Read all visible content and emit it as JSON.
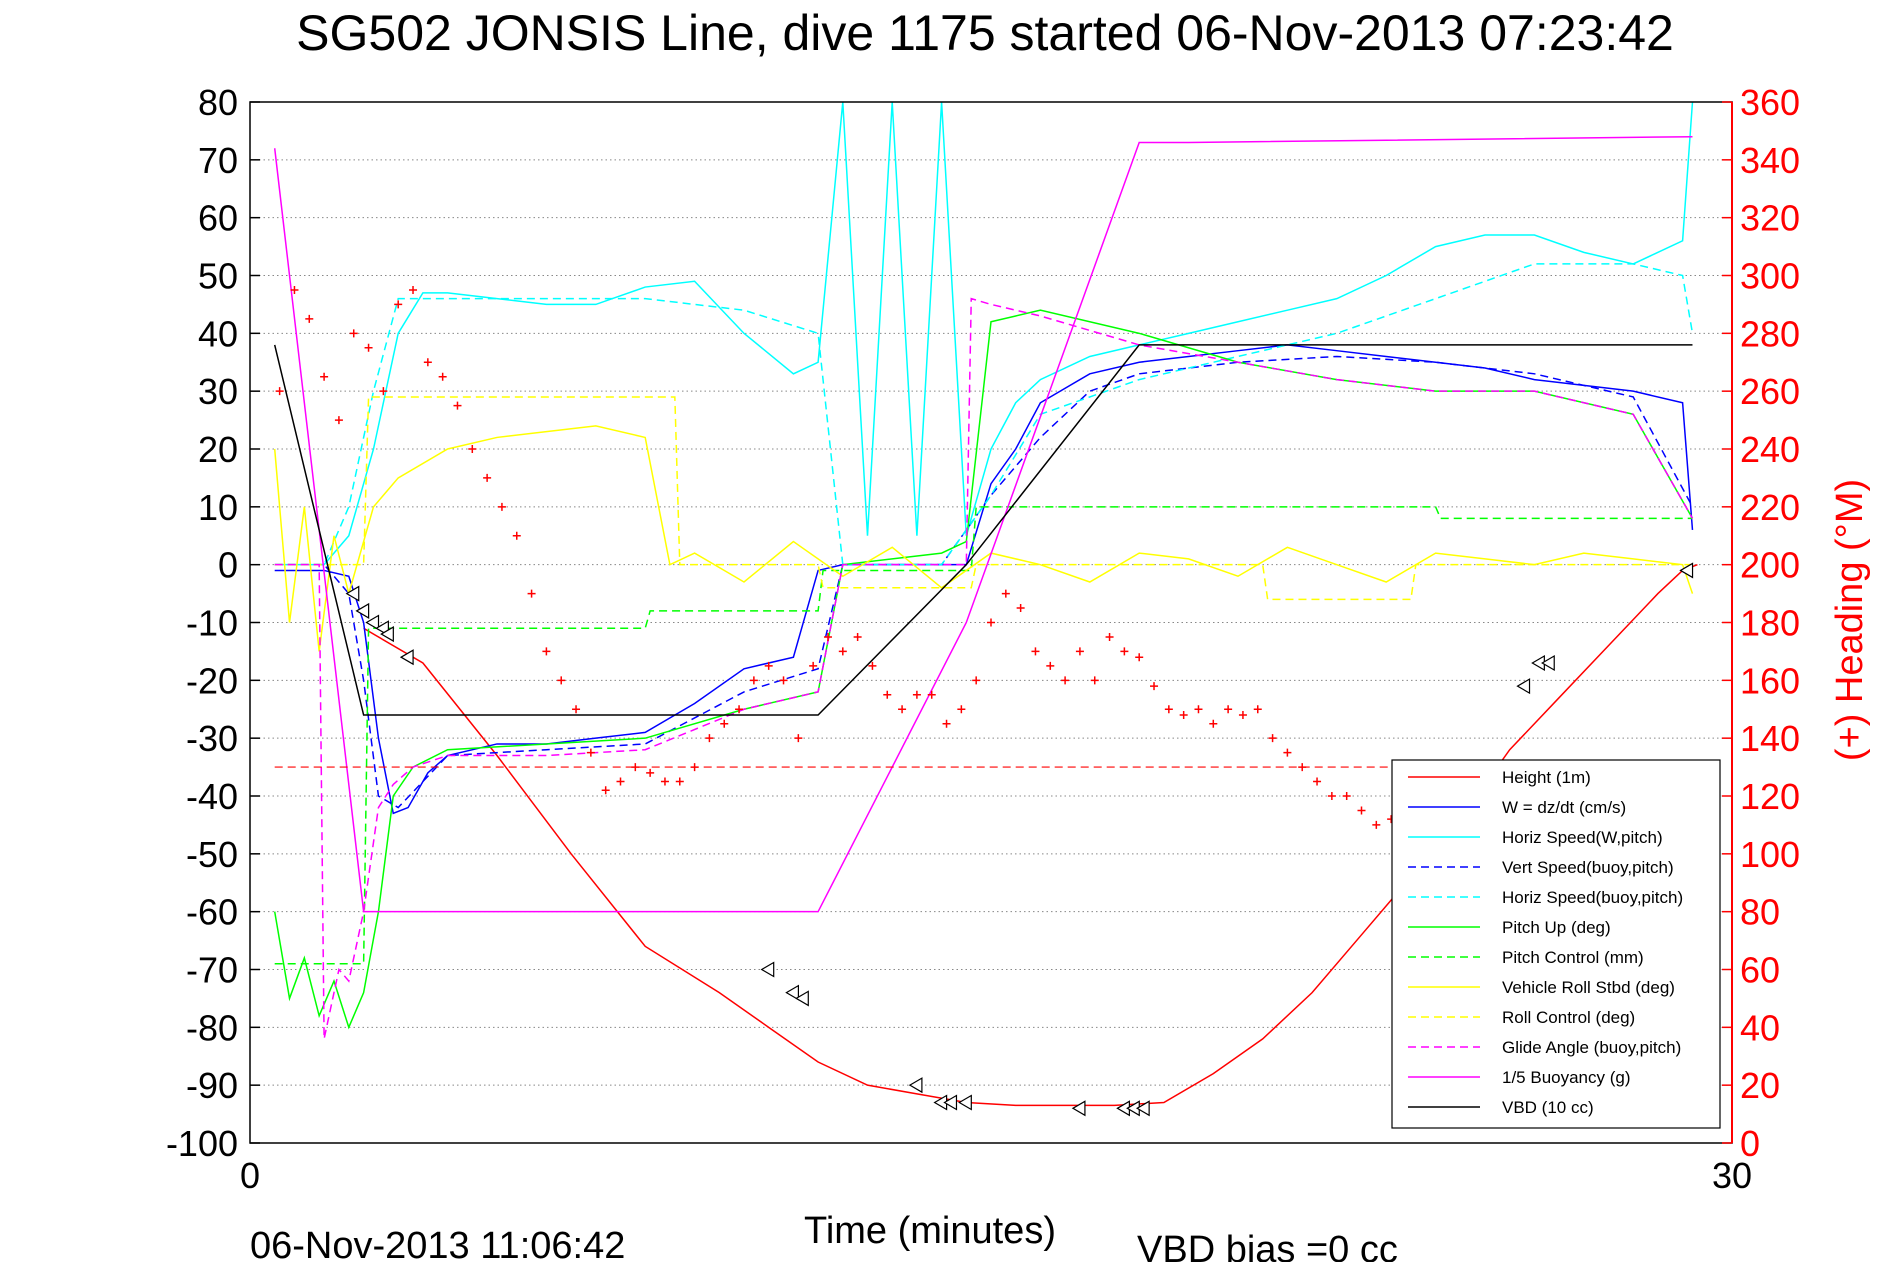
{
  "title": "SG502 JONSIS Line, dive 1175 started 06-Nov-2013 07:23:42",
  "footer": {
    "timestamp": "06-Nov-2013 11:06:42",
    "vbd_bias": "VBD bias =0 cc"
  },
  "colors": {
    "red": "#ff0000",
    "blue": "#0000ff",
    "cyan": "#00ffff",
    "green": "#00ff00",
    "yellow": "#ffff00",
    "magenta": "#ff00ff",
    "black": "#000000"
  },
  "chart_data": {
    "type": "line",
    "title": "SG502 JONSIS Line, dive 1175 started 06-Nov-2013 07:23:42",
    "xlabel": "Time (minutes)",
    "ylabel_right": "(+) Heading (°M)",
    "xlim": [
      0,
      30
    ],
    "ylim": [
      -100,
      80
    ],
    "ylim_right": [
      0,
      360
    ],
    "x_ticks": [
      "0",
      "30"
    ],
    "y_ticks": [
      "80",
      "70",
      "60",
      "50",
      "40",
      "30",
      "20",
      "10",
      "0",
      "-10",
      "-20",
      "-30",
      "-40",
      "-50",
      "-60",
      "-70",
      "-80",
      "-90",
      "-100"
    ],
    "y_right_ticks": [
      "360",
      "340",
      "320",
      "300",
      "280",
      "260",
      "240",
      "220",
      "200",
      "180",
      "160",
      "140",
      "120",
      "100",
      "80",
      "60",
      "40",
      "20",
      "0"
    ],
    "grid": "horizontal dotted",
    "legend_position": "lower-right",
    "legend": [
      {
        "label": "Height (1m)",
        "color": "#ff0000",
        "style": "solid"
      },
      {
        "label": "W = dz/dt (cm/s)",
        "color": "#0000ff",
        "style": "solid"
      },
      {
        "label": "Horiz Speed(W,pitch)",
        "color": "#00ffff",
        "style": "solid"
      },
      {
        "label": "Vert Speed(buoy,pitch)",
        "color": "#0000ff",
        "style": "dashed"
      },
      {
        "label": "Horiz Speed(buoy,pitch)",
        "color": "#00ffff",
        "style": "dashed"
      },
      {
        "label": "Pitch Up (deg)",
        "color": "#00ff00",
        "style": "solid"
      },
      {
        "label": "Pitch Control (mm)",
        "color": "#00ff00",
        "style": "dashed"
      },
      {
        "label": "Vehicle Roll Stbd (deg)",
        "color": "#ffff00",
        "style": "solid"
      },
      {
        "label": "Roll Control (deg)",
        "color": "#ffff00",
        "style": "dashed"
      },
      {
        "label": "Glide Angle (buoy,pitch)",
        "color": "#ff00ff",
        "style": "dashed"
      },
      {
        "label": "1/5 Buoyancy (g)",
        "color": "#ff00ff",
        "style": "solid"
      },
      {
        "label": "VBD (10 cc)",
        "color": "#000000",
        "style": "solid"
      }
    ],
    "series": [
      {
        "name": "Height (1m)",
        "color": "#ff0000",
        "style": "solid",
        "axis": "left",
        "x": [
          2.3,
          3.5,
          5,
          6.5,
          8,
          9.5,
          10.5,
          11.5,
          12.5,
          13.5,
          14.5,
          15.5,
          16.5,
          17.5,
          18.5,
          19.5,
          20.5,
          21.5,
          22.5,
          23.5,
          24.5,
          25.5,
          26.5,
          27.5,
          28.5,
          29,
          29.3
        ],
        "y": [
          -11,
          -17,
          -33,
          -50,
          -66,
          -74,
          -80,
          -86,
          -90,
          -91.5,
          -93,
          -93.5,
          -93.5,
          -93.5,
          -93,
          -88,
          -82,
          -74,
          -64,
          -54,
          -44,
          -32,
          -23,
          -14,
          -5,
          -1,
          0
        ]
      },
      {
        "name": "W = dz/dt (cm/s)",
        "color": "#0000ff",
        "style": "solid",
        "axis": "left",
        "x": [
          0.5,
          1.5,
          2.0,
          2.3,
          2.6,
          2.9,
          3.2,
          3.6,
          4,
          5,
          6,
          7,
          8,
          9,
          10,
          11,
          11.5,
          12,
          13,
          14,
          14.5,
          15,
          15.5,
          16,
          17,
          18,
          19,
          20,
          21,
          22,
          23,
          24,
          25,
          26,
          27,
          28,
          29,
          29.2
        ],
        "y": [
          -1,
          -1,
          -2,
          -10,
          -30,
          -43,
          -42,
          -36,
          -33,
          -31,
          -31,
          -30,
          -29,
          -24,
          -18,
          -16,
          -1,
          0,
          0,
          0,
          0,
          14,
          20,
          28,
          33,
          35,
          36,
          37,
          38,
          37,
          36,
          35,
          34,
          32,
          31,
          30,
          28,
          6
        ]
      },
      {
        "name": "Horiz Speed(W,pitch)",
        "color": "#00ffff",
        "style": "solid",
        "axis": "left",
        "x": [
          0.5,
          1.5,
          2.0,
          2.5,
          3,
          3.5,
          4,
          5,
          6,
          7,
          8,
          9,
          10,
          11,
          11.5,
          12,
          12.5,
          13,
          13.5,
          14,
          14.5,
          15,
          15.5,
          16,
          17,
          18,
          19,
          20,
          21,
          22,
          23,
          24,
          25,
          26,
          27,
          28,
          29,
          29.2
        ],
        "y": [
          0,
          0,
          5,
          20,
          40,
          47,
          47,
          46,
          45,
          45,
          48,
          49,
          40,
          33,
          35,
          80,
          5,
          80,
          5,
          80,
          5,
          20,
          28,
          32,
          36,
          38,
          40,
          42,
          44,
          46,
          50,
          55,
          57,
          57,
          54,
          52,
          56,
          80
        ]
      },
      {
        "name": "Vert Speed(buoy,pitch)",
        "color": "#0000ff",
        "style": "dashed",
        "axis": "left",
        "x": [
          0.5,
          1.5,
          2.0,
          2.3,
          2.6,
          3,
          4,
          6,
          8,
          10,
          11.5,
          12,
          14,
          15,
          16,
          17,
          18,
          20,
          22,
          24,
          26,
          28,
          29.2
        ],
        "y": [
          0,
          0,
          -5,
          -20,
          -40,
          -42,
          -33,
          -32,
          -31,
          -22,
          -18,
          0,
          0,
          12,
          22,
          30,
          33,
          35,
          36,
          35,
          33,
          29,
          10
        ]
      },
      {
        "name": "Horiz Speed(buoy,pitch)",
        "color": "#00ffff",
        "style": "dashed",
        "axis": "left",
        "x": [
          0.5,
          1.5,
          2.0,
          2.5,
          3,
          4,
          6,
          8,
          10,
          11.5,
          12,
          14,
          15,
          16,
          18,
          20,
          22,
          24,
          26,
          28,
          29,
          29.2
        ],
        "y": [
          0,
          0,
          10,
          30,
          46,
          46,
          46,
          46,
          44,
          40,
          0,
          0,
          12,
          26,
          32,
          36,
          40,
          46,
          52,
          52,
          50,
          40
        ]
      },
      {
        "name": "Pitch Up (deg)",
        "color": "#00ff00",
        "style": "solid",
        "axis": "left",
        "x": [
          0.5,
          0.8,
          1.1,
          1.4,
          1.7,
          2.0,
          2.3,
          2.6,
          2.9,
          3.3,
          4,
          6,
          8,
          10,
          11.5,
          12,
          14,
          14.5,
          15,
          15.5,
          16,
          18,
          20,
          22,
          24,
          26,
          28,
          29.2
        ],
        "y": [
          -60,
          -75,
          -68,
          -78,
          -72,
          -80,
          -74,
          -60,
          -40,
          -35,
          -32,
          -31,
          -30,
          -25,
          -22,
          0,
          2,
          4,
          42,
          43,
          44,
          40,
          35,
          32,
          30,
          30,
          26,
          8
        ]
      },
      {
        "name": "Pitch Control (mm)",
        "color": "#00ff00",
        "style": "dashed",
        "axis": "left",
        "x": [
          0.5,
          2.3,
          2.4,
          6,
          8,
          8.1,
          11.5,
          11.6,
          14.6,
          14.7,
          24,
          24.1,
          29.2
        ],
        "y": [
          -69,
          -69,
          -11,
          -11,
          -11,
          -8,
          -8,
          -1,
          -1,
          10,
          10,
          8,
          8
        ]
      },
      {
        "name": "Vehicle Roll Stbd (deg)",
        "color": "#ffff00",
        "style": "solid",
        "axis": "left",
        "x": [
          0.5,
          0.8,
          1.1,
          1.4,
          1.7,
          2.0,
          2.5,
          3,
          4,
          5,
          6,
          7,
          8,
          8.5,
          9,
          10,
          11,
          12,
          13,
          14,
          15,
          16,
          17,
          18,
          19,
          20,
          21,
          22,
          23,
          24,
          25,
          26,
          27,
          28,
          29,
          29.2
        ],
        "y": [
          20,
          -10,
          10,
          -15,
          5,
          -5,
          10,
          15,
          20,
          22,
          23,
          24,
          22,
          0,
          2,
          -3,
          4,
          -2,
          3,
          -4,
          2,
          0,
          -3,
          2,
          1,
          -2,
          3,
          0,
          -3,
          2,
          1,
          0,
          2,
          1,
          0,
          -5
        ]
      },
      {
        "name": "Roll Control (deg)",
        "color": "#ffff00",
        "style": "dashed",
        "axis": "left",
        "x": [
          0.5,
          2.3,
          2.4,
          8.6,
          8.7,
          11.5,
          11.6,
          14.6,
          14.7,
          20.5,
          20.6,
          23.5,
          23.6,
          29.2
        ],
        "y": [
          0,
          0,
          29,
          29,
          0,
          0,
          -4,
          -4,
          0,
          0,
          -6,
          -6,
          0,
          0
        ]
      },
      {
        "name": "Glide Angle (buoy,pitch)",
        "color": "#ff00ff",
        "style": "dashed",
        "axis": "left",
        "x": [
          0.5,
          1.4,
          1.5,
          1.8,
          2.0,
          2.3,
          2.6,
          2.9,
          3.3,
          4,
          6,
          8,
          10,
          11.5,
          12,
          14.5,
          14.6,
          15,
          16,
          18,
          20,
          22,
          24,
          26,
          28,
          29.2
        ],
        "y": [
          0,
          0,
          -82,
          -70,
          -72,
          -60,
          -42,
          -38,
          -35,
          -33,
          -33,
          -32,
          -25,
          -22,
          0,
          0,
          46,
          45,
          43,
          38,
          35,
          32,
          30,
          30,
          26,
          8
        ]
      },
      {
        "name": "1/5 Buoyancy (g)",
        "color": "#ff00ff",
        "style": "solid",
        "axis": "left",
        "x": [
          0.5,
          2.3,
          2.4,
          11.5,
          14.5,
          18,
          19,
          29.2
        ],
        "y": [
          72,
          -60,
          -60,
          -60,
          -10,
          73,
          73,
          74
        ]
      },
      {
        "name": "VBD (10 cc)",
        "color": "#000000",
        "style": "solid",
        "axis": "left",
        "x": [
          0.5,
          2.3,
          2.4,
          11.5,
          14.5,
          18,
          29.2
        ],
        "y": [
          38,
          -26,
          -26,
          -26,
          0,
          38,
          38
        ]
      },
      {
        "name": "Heading",
        "color": "#ff0000",
        "style": "markers-plus",
        "axis": "right",
        "x": [
          0.6,
          0.9,
          1.2,
          1.5,
          1.8,
          2.1,
          2.4,
          2.7,
          3.0,
          3.3,
          3.6,
          3.9,
          4.2,
          4.5,
          4.8,
          5.1,
          5.4,
          5.7,
          6.0,
          6.3,
          6.6,
          6.9,
          7.2,
          7.5,
          7.8,
          8.1,
          8.4,
          8.7,
          9.0,
          9.3,
          9.6,
          9.9,
          10.2,
          10.5,
          10.8,
          11.1,
          11.4,
          11.7,
          12.0,
          12.3,
          12.6,
          12.9,
          13.2,
          13.5,
          13.8,
          14.1,
          14.4,
          14.7,
          15.0,
          15.3,
          15.6,
          15.9,
          16.2,
          16.5,
          16.8,
          17.1,
          17.4,
          17.7,
          18.0,
          18.3,
          18.6,
          18.9,
          19.2,
          19.5,
          19.8,
          20.1,
          20.4,
          20.7,
          21.0,
          21.3,
          21.6,
          21.9,
          22.2,
          22.5,
          22.8,
          23.1,
          23.4,
          23.7,
          24.0,
          24.3,
          24.6,
          24.9,
          25.2,
          25.5,
          25.8,
          26.1,
          26.4,
          26.7,
          27.0,
          27.3,
          27.6,
          27.9,
          28.2,
          28.5,
          28.8,
          29.1,
          29.3
        ],
        "y": [
          260,
          295,
          285,
          265,
          250,
          280,
          275,
          260,
          290,
          295,
          270,
          265,
          255,
          240,
          230,
          220,
          210,
          190,
          170,
          160,
          150,
          135,
          122,
          125,
          130,
          128,
          125,
          125,
          130,
          140,
          145,
          150,
          160,
          165,
          160,
          140,
          165,
          175,
          170,
          175,
          165,
          155,
          150,
          155,
          155,
          145,
          150,
          160,
          180,
          190,
          185,
          170,
          165,
          160,
          170,
          160,
          175,
          170,
          168,
          158,
          150,
          148,
          150,
          145,
          150,
          148,
          150,
          140,
          135,
          130,
          125,
          120,
          120,
          115,
          110,
          112,
          118,
          122,
          125,
          128,
          130,
          128,
          126,
          120,
          118,
          116,
          115,
          118,
          120,
          118,
          115,
          112,
          110,
          108,
          112,
          110,
          95
        ]
      },
      {
        "name": "Height markers",
        "color": "#000000",
        "style": "markers-triangle",
        "axis": "left",
        "x": [
          2.1,
          2.3,
          2.5,
          2.7,
          2.8,
          3.2,
          10.5,
          11,
          11.2,
          13.5,
          14.0,
          14.2,
          14.5,
          16.8,
          17.7,
          17.9,
          18.1,
          23.4,
          25.8,
          26.1,
          26.3,
          29.1
        ],
        "y": [
          -5,
          -8,
          -10,
          -11,
          -12,
          -16,
          -70,
          -74,
          -75,
          -90,
          -93,
          -93,
          -93,
          -94,
          -94,
          -94,
          -94,
          -46,
          -21,
          -17,
          -17,
          -1
        ]
      }
    ]
  },
  "legend_items": [
    {
      "label": "Height (1m)"
    },
    {
      "label": "W = dz/dt (cm/s)"
    },
    {
      "label": "Horiz Speed(W,pitch)"
    },
    {
      "label": "Vert Speed(buoy,pitch)"
    },
    {
      "label": "Horiz Speed(buoy,pitch)"
    },
    {
      "label": "Pitch Up (deg)"
    },
    {
      "label": "Pitch Control (mm)"
    },
    {
      "label": "Vehicle Roll Stbd (deg)"
    },
    {
      "label": "Roll Control (deg)"
    },
    {
      "label": "Glide Angle (buoy,pitch)"
    },
    {
      "label": "1/5 Buoyancy (g)"
    },
    {
      "label": "VBD (10 cc)"
    }
  ]
}
